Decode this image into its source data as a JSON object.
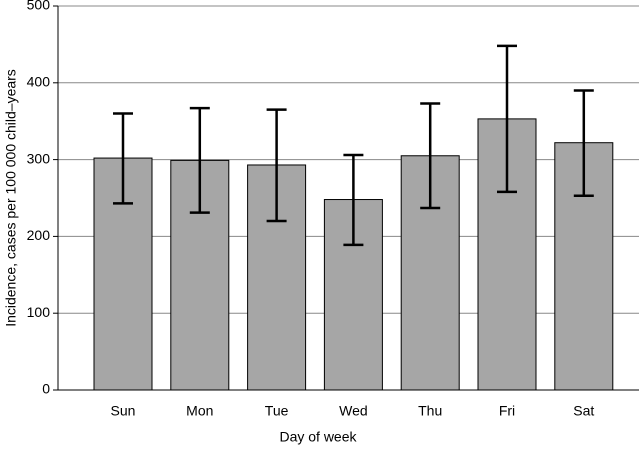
{
  "chart_data": {
    "type": "bar",
    "x_label": "Day of week",
    "y_label": "Incidence, cases per 100 000 child–years",
    "categories": [
      "Sun",
      "Mon",
      "Tue",
      "Wed",
      "Thu",
      "Fri",
      "Sat"
    ],
    "values": [
      302,
      299,
      293,
      248,
      305,
      353,
      322
    ],
    "error_lower": [
      243,
      231,
      220,
      189,
      237,
      258,
      253
    ],
    "error_upper": [
      360,
      367,
      365,
      306,
      373,
      448,
      390
    ],
    "color": "#a6a6a6",
    "ylim": [
      0,
      500
    ],
    "yticks": [
      0,
      100,
      200,
      300,
      400,
      500
    ],
    "grid": true
  }
}
